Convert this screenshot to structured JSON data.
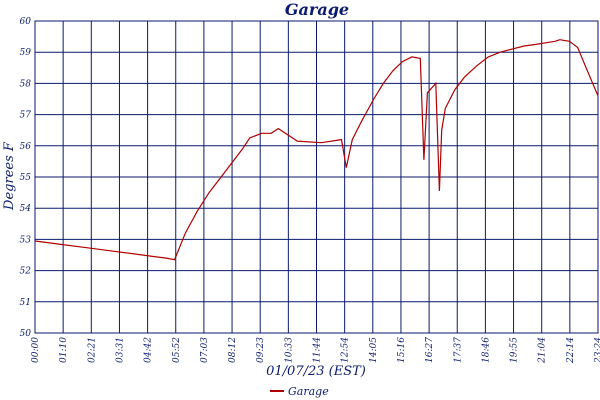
{
  "colors": {
    "grid": "#0a1a6e",
    "text": "#0a1a6e",
    "series": "#b00000",
    "background": "#ffffff"
  },
  "chart_data": {
    "type": "line",
    "title": "Garage",
    "xlabel": "01/07/23 (EST)",
    "ylabel": "Degrees F",
    "xlim": [
      0,
      23.6
    ],
    "ylim": [
      50,
      60
    ],
    "x_tick_labels": [
      "00:00",
      "01:10",
      "02:21",
      "03:31",
      "04:42",
      "05:52",
      "07:03",
      "08:12",
      "09:23",
      "10:33",
      "11:44",
      "12:54",
      "14:05",
      "15:16",
      "16:27",
      "17:37",
      "18:46",
      "19:55",
      "21:04",
      "22:14",
      "23:24"
    ],
    "y_tick_labels": [
      "50",
      "51",
      "52",
      "53",
      "54",
      "55",
      "56",
      "57",
      "58",
      "59",
      "60"
    ],
    "grid": true,
    "legend_position": "bottom-center",
    "series": [
      {
        "name": "Garage",
        "x": [
          0,
          0.5,
          1,
          2,
          3,
          4,
          5,
          5.5,
          5.85,
          6.3,
          6.8,
          7.3,
          7.8,
          8.3,
          8.7,
          9.0,
          9.5,
          9.9,
          10.2,
          11,
          12,
          12.85,
          13.05,
          13.3,
          13.7,
          14.2,
          14.6,
          15.0,
          15.4,
          15.8,
          16.15,
          16.3,
          16.45,
          16.8,
          16.95,
          17.05,
          17.2,
          17.6,
          18,
          18.5,
          19,
          19.5,
          20,
          20.5,
          21,
          21.4,
          21.8,
          22.0,
          22.4,
          22.75,
          23.1,
          23.6
        ],
        "y": [
          52.95,
          52.9,
          52.85,
          52.75,
          52.65,
          52.55,
          52.45,
          52.4,
          52.35,
          53.2,
          53.9,
          54.5,
          55.0,
          55.5,
          55.9,
          56.25,
          56.4,
          56.4,
          56.55,
          56.15,
          56.1,
          56.2,
          55.3,
          56.2,
          56.8,
          57.5,
          58.0,
          58.4,
          58.7,
          58.85,
          58.8,
          55.55,
          57.7,
          58.0,
          54.55,
          56.5,
          57.2,
          57.8,
          58.2,
          58.55,
          58.85,
          59.0,
          59.1,
          59.2,
          59.25,
          59.3,
          59.35,
          59.4,
          59.35,
          59.15,
          58.5,
          57.6
        ]
      }
    ]
  }
}
